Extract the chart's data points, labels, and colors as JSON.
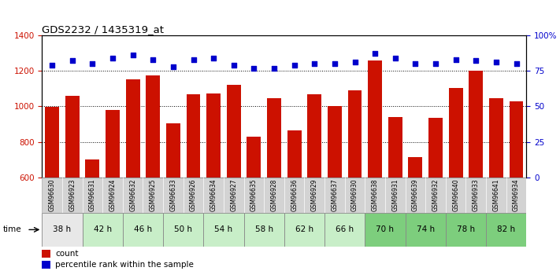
{
  "title": "GDS2232 / 1435319_at",
  "samples": [
    "GSM96630",
    "GSM96923",
    "GSM96631",
    "GSM96924",
    "GSM96632",
    "GSM96925",
    "GSM96633",
    "GSM96926",
    "GSM96634",
    "GSM96927",
    "GSM96635",
    "GSM96928",
    "GSM96636",
    "GSM96929",
    "GSM96637",
    "GSM96930",
    "GSM96638",
    "GSM96931",
    "GSM96639",
    "GSM96932",
    "GSM96640",
    "GSM96933",
    "GSM96641",
    "GSM96934"
  ],
  "counts": [
    998,
    1060,
    700,
    980,
    1150,
    1175,
    905,
    1068,
    1072,
    1120,
    830,
    1048,
    865,
    1068,
    1002,
    1090,
    1260,
    940,
    715,
    937,
    1105,
    1200,
    1048,
    1028
  ],
  "percentile_ranks": [
    79,
    82,
    80,
    84,
    86,
    83,
    78,
    83,
    84,
    79,
    77,
    77,
    79,
    80,
    80,
    81,
    87,
    84,
    80,
    80,
    83,
    82,
    81,
    80
  ],
  "bar_color": "#cc1100",
  "dot_color": "#0000cc",
  "ylim_left": [
    600,
    1400
  ],
  "ylim_right": [
    0,
    100
  ],
  "yticks_left": [
    600,
    800,
    1000,
    1200,
    1400
  ],
  "yticks_right": [
    0,
    25,
    50,
    75,
    100
  ],
  "sample_bg_color": "#d3d3d3",
  "time_groups": [
    {
      "label": "38 h",
      "start": 0,
      "end": 2,
      "color": "#e8e8e8"
    },
    {
      "label": "42 h",
      "start": 2,
      "end": 4,
      "color": "#c8eec8"
    },
    {
      "label": "46 h",
      "start": 4,
      "end": 6,
      "color": "#c8eec8"
    },
    {
      "label": "50 h",
      "start": 6,
      "end": 8,
      "color": "#c8eec8"
    },
    {
      "label": "54 h",
      "start": 8,
      "end": 10,
      "color": "#c8eec8"
    },
    {
      "label": "58 h",
      "start": 10,
      "end": 12,
      "color": "#c8eec8"
    },
    {
      "label": "62 h",
      "start": 12,
      "end": 14,
      "color": "#c8eec8"
    },
    {
      "label": "66 h",
      "start": 14,
      "end": 16,
      "color": "#c8eec8"
    },
    {
      "label": "70 h",
      "start": 16,
      "end": 18,
      "color": "#7dce7d"
    },
    {
      "label": "74 h",
      "start": 18,
      "end": 20,
      "color": "#7dce7d"
    },
    {
      "label": "78 h",
      "start": 20,
      "end": 22,
      "color": "#7dce7d"
    },
    {
      "label": "82 h",
      "start": 22,
      "end": 24,
      "color": "#7dce7d"
    }
  ],
  "legend_count_color": "#cc1100",
  "legend_pct_color": "#0000cc",
  "fig_width": 7.11,
  "fig_height": 3.45,
  "dpi": 100
}
